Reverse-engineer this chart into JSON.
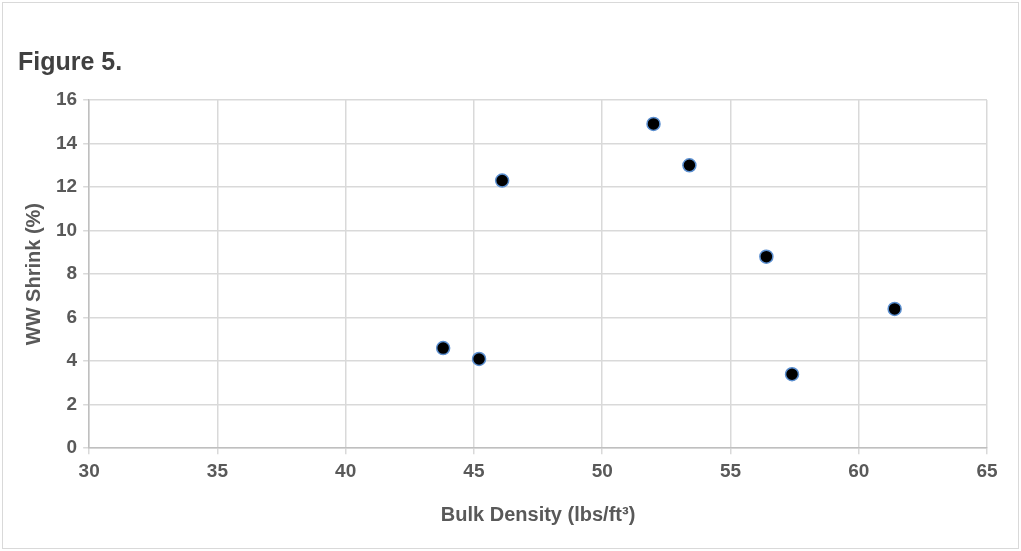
{
  "chart_data": {
    "type": "scatter",
    "title": "Figure 5.",
    "xlabel": "Bulk Density (lbs/ft³)",
    "ylabel": "WW Shrink (%)",
    "x": [
      43.8,
      45.2,
      46.1,
      52.0,
      53.4,
      56.4,
      57.4,
      61.4
    ],
    "series": [
      {
        "color": "#000000",
        "values": [
          4.6,
          4.1,
          12.3,
          14.9,
          13.0,
          8.8,
          3.4,
          6.4
        ]
      }
    ],
    "xlim": [
      30,
      65
    ],
    "xticks": [
      30,
      35,
      40,
      45,
      50,
      55,
      60,
      65
    ],
    "ylim": [
      0,
      16
    ],
    "yticks": [
      0,
      2,
      4,
      6,
      8,
      10,
      12,
      14,
      16
    ],
    "grid": true,
    "legend": false,
    "marker": "circle"
  }
}
